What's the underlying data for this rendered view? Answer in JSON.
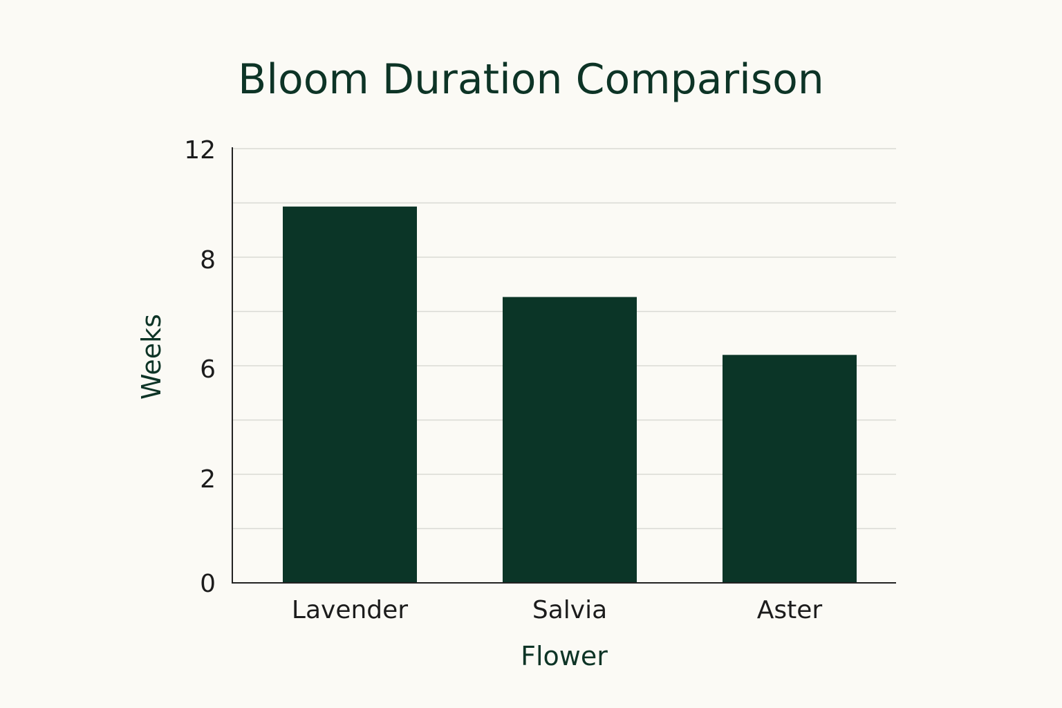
{
  "colors": {
    "background": "#fbfaf5",
    "bar": "#0b3527",
    "text": "#0d3426",
    "tick_text": "#1c1c1c",
    "grid": "#d9d9d4",
    "axis": "#222222"
  },
  "chart_data": {
    "type": "bar",
    "title": "Bloom Duration Comparison",
    "xlabel": "Flower",
    "ylabel": "Weeks",
    "categories": [
      "Lavender",
      "Salvia",
      "Aster"
    ],
    "values": [
      10.4,
      7.9,
      6.3
    ],
    "ylim": [
      0,
      12
    ],
    "yticks": [
      0,
      2,
      6,
      8,
      12
    ],
    "grid": true,
    "legend": "none"
  }
}
